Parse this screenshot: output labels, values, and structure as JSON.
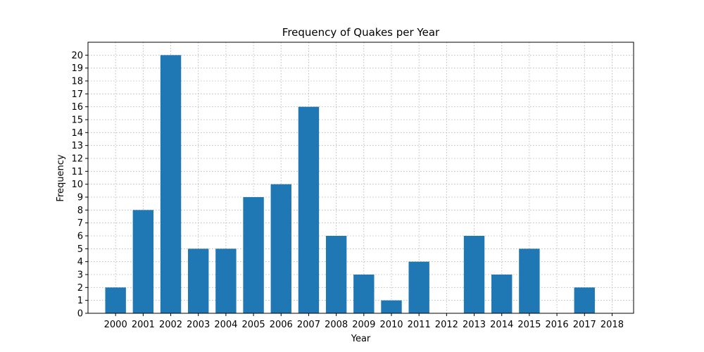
{
  "chart_data": {
    "type": "bar",
    "title": "Frequency of Quakes per Year",
    "xlabel": "Year",
    "ylabel": "Frequency",
    "categories": [
      "2000",
      "2001",
      "2002",
      "2003",
      "2004",
      "2005",
      "2006",
      "2007",
      "2008",
      "2009",
      "2010",
      "2011",
      "2012",
      "2013",
      "2014",
      "2015",
      "2016",
      "2017",
      "2018"
    ],
    "values": [
      2,
      8,
      20,
      5,
      5,
      9,
      10,
      16,
      6,
      3,
      1,
      4,
      0,
      6,
      3,
      5,
      0,
      2,
      0
    ],
    "ylim": [
      0,
      21
    ],
    "yticks": [
      0,
      1,
      2,
      3,
      4,
      5,
      6,
      7,
      8,
      9,
      10,
      11,
      12,
      13,
      14,
      15,
      16,
      17,
      18,
      19,
      20
    ],
    "grid": true,
    "bar_color": "#1f77b4"
  }
}
